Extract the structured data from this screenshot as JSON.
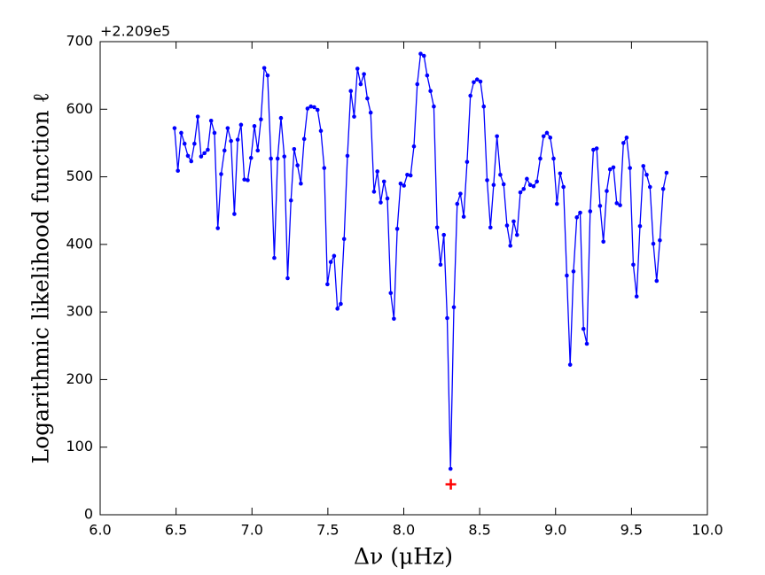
{
  "chart_data": {
    "type": "line",
    "offset_text": "+2.209e5",
    "xlabel": "Δν (μHz)",
    "ylabel": "Logarithmic likelihood function ℓ",
    "xlim": [
      6,
      10
    ],
    "ylim": [
      0,
      700
    ],
    "xticks": [
      {
        "value": 6,
        "label": "6.0"
      },
      {
        "value": 6.5,
        "label": "6.5"
      },
      {
        "value": 7,
        "label": "7.0"
      },
      {
        "value": 7.5,
        "label": "7.5"
      },
      {
        "value": 8,
        "label": "8.0"
      },
      {
        "value": 8.5,
        "label": "8.5"
      },
      {
        "value": 9,
        "label": "9.0"
      },
      {
        "value": 9.5,
        "label": "9.5"
      },
      {
        "value": 10,
        "label": "10.0"
      }
    ],
    "yticks": [
      0,
      100,
      200,
      300,
      400,
      500,
      600,
      700
    ],
    "series": [
      {
        "color": "#0000ff",
        "x": [
          6.49,
          6.512,
          6.534,
          6.556,
          6.578,
          6.6,
          6.621,
          6.643,
          6.665,
          6.687,
          6.709,
          6.731,
          6.753,
          6.775,
          6.797,
          6.819,
          6.84,
          6.862,
          6.884,
          6.906,
          6.928,
          6.95,
          6.972,
          6.994,
          7.016,
          7.038,
          7.059,
          7.081,
          7.103,
          7.125,
          7.147,
          7.169,
          7.191,
          7.213,
          7.235,
          7.257,
          7.278,
          7.3,
          7.322,
          7.344,
          7.366,
          7.388,
          7.41,
          7.432,
          7.454,
          7.476,
          7.497,
          7.519,
          7.541,
          7.563,
          7.585,
          7.607,
          7.629,
          7.651,
          7.673,
          7.695,
          7.716,
          7.738,
          7.76,
          7.782,
          7.804,
          7.826,
          7.848,
          7.87,
          7.892,
          7.914,
          7.935,
          7.957,
          7.979,
          8.001,
          8.023,
          8.045,
          8.067,
          8.089,
          8.111,
          8.133,
          8.154,
          8.176,
          8.198,
          8.22,
          8.242,
          8.264,
          8.286,
          8.308,
          8.33,
          8.352,
          8.373,
          8.395,
          8.417,
          8.439,
          8.461,
          8.483,
          8.505,
          8.527,
          8.549,
          8.571,
          8.592,
          8.614,
          8.636,
          8.658,
          8.68,
          8.702,
          8.724,
          8.746,
          8.768,
          8.79,
          8.811,
          8.833,
          8.855,
          8.877,
          8.899,
          8.921,
          8.943,
          8.965,
          8.987,
          9.009,
          9.03,
          9.052,
          9.074,
          9.096,
          9.118,
          9.14,
          9.162,
          9.184,
          9.206,
          9.228,
          9.249,
          9.271,
          9.293,
          9.315,
          9.337,
          9.359,
          9.381,
          9.403,
          9.425,
          9.447,
          9.468,
          9.49,
          9.512,
          9.534,
          9.556,
          9.578,
          9.6,
          9.622,
          9.644,
          9.666,
          9.687,
          9.709,
          9.731
        ],
        "values": [
          572,
          509,
          565,
          549,
          531,
          523,
          549,
          589,
          530,
          535,
          540,
          583,
          565,
          424,
          504,
          539,
          572,
          553,
          445,
          555,
          577,
          496,
          495,
          528,
          575,
          539,
          585,
          661,
          650,
          527,
          380,
          527,
          587,
          530,
          350,
          465,
          541,
          517,
          490,
          556,
          601,
          604,
          603,
          599,
          568,
          513,
          341,
          374,
          383,
          305,
          312,
          408,
          531,
          627,
          589,
          660,
          637,
          652,
          616,
          595,
          478,
          508,
          462,
          493,
          468,
          328,
          290,
          423,
          490,
          487,
          503,
          502,
          545,
          637,
          682,
          679,
          650,
          627,
          604,
          425,
          370,
          414,
          291,
          68,
          307,
          460,
          475,
          441,
          522,
          620,
          640,
          644,
          641,
          604,
          495,
          425,
          488,
          560,
          503,
          489,
          428,
          398,
          434,
          414,
          477,
          482,
          497,
          488,
          486,
          493,
          527,
          560,
          565,
          558,
          527,
          460,
          505,
          485,
          354,
          222,
          360,
          440,
          447,
          275,
          253,
          449,
          540,
          542,
          457,
          404,
          479,
          511,
          514,
          461,
          458,
          550,
          558,
          513,
          370,
          323,
          427,
          516,
          503,
          485,
          401,
          346,
          406,
          482,
          506
        ]
      }
    ],
    "marker": {
      "x": 8.31,
      "y": 45,
      "color": "#ff0000"
    }
  }
}
